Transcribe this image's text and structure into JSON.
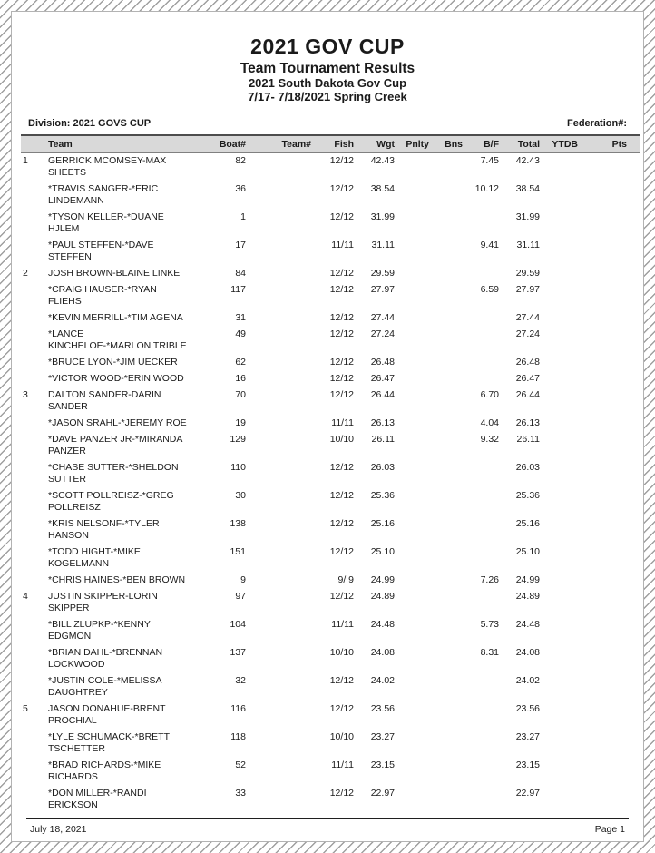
{
  "page": {
    "title": "2021 GOV CUP",
    "subtitle": "Team Tournament Results",
    "event": "2021 South Dakota Gov Cup",
    "dates_location": "7/17- 7/18/2021 Spring Creek",
    "division": "Division: 2021 GOVS CUP",
    "federation": "Federation#:",
    "footer_date": "July 18, 2021",
    "footer_page": "Page 1"
  },
  "table": {
    "columns": [
      "rank",
      "team",
      "boat",
      "teamno",
      "fish",
      "wgt",
      "pnlty",
      "bns",
      "bf",
      "total",
      "ytdb",
      "pts"
    ],
    "headers": {
      "team": "Team",
      "boat": "Boat#",
      "teamno": "Team#",
      "fish": "Fish",
      "wgt": "Wgt",
      "pnlty": "Pnlty",
      "bns": "Bns",
      "bf": "B/F",
      "total": "Total",
      "ytdb": "YTDB",
      "pts": "Pts"
    },
    "rows": [
      {
        "rank": "1",
        "team": "GERRICK MCOMSEY-MAX\nSHEETS",
        "boat": "82",
        "teamno": "",
        "fish": "12/12",
        "wgt": "42.43",
        "pnlty": "",
        "bns": "",
        "bf": "7.45",
        "total": "42.43",
        "ytdb": "",
        "pts": ""
      },
      {
        "rank": "",
        "team": "*TRAVIS SANGER-*ERIC\nLINDEMANN",
        "boat": "36",
        "teamno": "",
        "fish": "12/12",
        "wgt": "38.54",
        "pnlty": "",
        "bns": "",
        "bf": "10.12",
        "total": "38.54",
        "ytdb": "",
        "pts": ""
      },
      {
        "rank": "",
        "team": "*TYSON KELLER-*DUANE\nHJLEM",
        "boat": "1",
        "teamno": "",
        "fish": "12/12",
        "wgt": "31.99",
        "pnlty": "",
        "bns": "",
        "bf": "",
        "total": "31.99",
        "ytdb": "",
        "pts": ""
      },
      {
        "rank": "",
        "team": "*PAUL STEFFEN-*DAVE\nSTEFFEN",
        "boat": "17",
        "teamno": "",
        "fish": "11/11",
        "wgt": "31.11",
        "pnlty": "",
        "bns": "",
        "bf": "9.41",
        "total": "31.11",
        "ytdb": "",
        "pts": ""
      },
      {
        "rank": "2",
        "team": "JOSH BROWN-BLAINE LINKE",
        "boat": "84",
        "teamno": "",
        "fish": "12/12",
        "wgt": "29.59",
        "pnlty": "",
        "bns": "",
        "bf": "",
        "total": "29.59",
        "ytdb": "",
        "pts": ""
      },
      {
        "rank": "",
        "team": "*CRAIG HAUSER-*RYAN\nFLIEHS",
        "boat": "117",
        "teamno": "",
        "fish": "12/12",
        "wgt": "27.97",
        "pnlty": "",
        "bns": "",
        "bf": "6.59",
        "total": "27.97",
        "ytdb": "",
        "pts": ""
      },
      {
        "rank": "",
        "team": "*KEVIN MERRILL-*TIM AGENA",
        "boat": "31",
        "teamno": "",
        "fish": "12/12",
        "wgt": "27.44",
        "pnlty": "",
        "bns": "",
        "bf": "",
        "total": "27.44",
        "ytdb": "",
        "pts": ""
      },
      {
        "rank": "",
        "team": "*LANCE\nKINCHELOE-*MARLON TRIBLE",
        "boat": "49",
        "teamno": "",
        "fish": "12/12",
        "wgt": "27.24",
        "pnlty": "",
        "bns": "",
        "bf": "",
        "total": "27.24",
        "ytdb": "",
        "pts": ""
      },
      {
        "rank": "",
        "team": "*BRUCE LYON-*JIM UECKER",
        "boat": "62",
        "teamno": "",
        "fish": "12/12",
        "wgt": "26.48",
        "pnlty": "",
        "bns": "",
        "bf": "",
        "total": "26.48",
        "ytdb": "",
        "pts": ""
      },
      {
        "rank": "",
        "team": "*VICTOR WOOD-*ERIN WOOD",
        "boat": "16",
        "teamno": "",
        "fish": "12/12",
        "wgt": "26.47",
        "pnlty": "",
        "bns": "",
        "bf": "",
        "total": "26.47",
        "ytdb": "",
        "pts": ""
      },
      {
        "rank": "3",
        "team": "DALTON SANDER-DARIN\nSANDER",
        "boat": "70",
        "teamno": "",
        "fish": "12/12",
        "wgt": "26.44",
        "pnlty": "",
        "bns": "",
        "bf": "6.70",
        "total": "26.44",
        "ytdb": "",
        "pts": ""
      },
      {
        "rank": "",
        "team": "*JASON SRAHL-*JEREMY ROE",
        "boat": "19",
        "teamno": "",
        "fish": "11/11",
        "wgt": "26.13",
        "pnlty": "",
        "bns": "",
        "bf": "4.04",
        "total": "26.13",
        "ytdb": "",
        "pts": ""
      },
      {
        "rank": "",
        "team": "*DAVE PANZER JR-*MIRANDA\nPANZER",
        "boat": "129",
        "teamno": "",
        "fish": "10/10",
        "wgt": "26.11",
        "pnlty": "",
        "bns": "",
        "bf": "9.32",
        "total": "26.11",
        "ytdb": "",
        "pts": ""
      },
      {
        "rank": "",
        "team": "*CHASE SUTTER-*SHELDON\nSUTTER",
        "boat": "110",
        "teamno": "",
        "fish": "12/12",
        "wgt": "26.03",
        "pnlty": "",
        "bns": "",
        "bf": "",
        "total": "26.03",
        "ytdb": "",
        "pts": ""
      },
      {
        "rank": "",
        "team": "*SCOTT POLLREISZ-*GREG\nPOLLREISZ",
        "boat": "30",
        "teamno": "",
        "fish": "12/12",
        "wgt": "25.36",
        "pnlty": "",
        "bns": "",
        "bf": "",
        "total": "25.36",
        "ytdb": "",
        "pts": ""
      },
      {
        "rank": "",
        "team": "*KRIS NELSONF-*TYLER\nHANSON",
        "boat": "138",
        "teamno": "",
        "fish": "12/12",
        "wgt": "25.16",
        "pnlty": "",
        "bns": "",
        "bf": "",
        "total": "25.16",
        "ytdb": "",
        "pts": ""
      },
      {
        "rank": "",
        "team": "*TODD HIGHT-*MIKE\nKOGELMANN",
        "boat": "151",
        "teamno": "",
        "fish": "12/12",
        "wgt": "25.10",
        "pnlty": "",
        "bns": "",
        "bf": "",
        "total": "25.10",
        "ytdb": "",
        "pts": ""
      },
      {
        "rank": "",
        "team": "*CHRIS HAINES-*BEN BROWN",
        "boat": "9",
        "teamno": "",
        "fish": "9/ 9",
        "wgt": "24.99",
        "pnlty": "",
        "bns": "",
        "bf": "7.26",
        "total": "24.99",
        "ytdb": "",
        "pts": ""
      },
      {
        "rank": "4",
        "team": "JUSTIN SKIPPER-LORIN\nSKIPPER",
        "boat": "97",
        "teamno": "",
        "fish": "12/12",
        "wgt": "24.89",
        "pnlty": "",
        "bns": "",
        "bf": "",
        "total": "24.89",
        "ytdb": "",
        "pts": ""
      },
      {
        "rank": "",
        "team": "*BILL ZLUPKP-*KENNY\nEDGMON",
        "boat": "104",
        "teamno": "",
        "fish": "11/11",
        "wgt": "24.48",
        "pnlty": "",
        "bns": "",
        "bf": "5.73",
        "total": "24.48",
        "ytdb": "",
        "pts": ""
      },
      {
        "rank": "",
        "team": "*BRIAN DAHL-*BRENNAN\nLOCKWOOD",
        "boat": "137",
        "teamno": "",
        "fish": "10/10",
        "wgt": "24.08",
        "pnlty": "",
        "bns": "",
        "bf": "8.31",
        "total": "24.08",
        "ytdb": "",
        "pts": ""
      },
      {
        "rank": "",
        "team": "*JUSTIN COLE-*MELISSA\nDAUGHTREY",
        "boat": "32",
        "teamno": "",
        "fish": "12/12",
        "wgt": "24.02",
        "pnlty": "",
        "bns": "",
        "bf": "",
        "total": "24.02",
        "ytdb": "",
        "pts": ""
      },
      {
        "rank": "5",
        "team": "JASON DONAHUE-BRENT\nPROCHIAL",
        "boat": "116",
        "teamno": "",
        "fish": "12/12",
        "wgt": "23.56",
        "pnlty": "",
        "bns": "",
        "bf": "",
        "total": "23.56",
        "ytdb": "",
        "pts": ""
      },
      {
        "rank": "",
        "team": "*LYLE SCHUMACK-*BRETT\nTSCHETTER",
        "boat": "118",
        "teamno": "",
        "fish": "10/10",
        "wgt": "23.27",
        "pnlty": "",
        "bns": "",
        "bf": "",
        "total": "23.27",
        "ytdb": "",
        "pts": ""
      },
      {
        "rank": "",
        "team": "*BRAD RICHARDS-*MIKE\nRICHARDS",
        "boat": "52",
        "teamno": "",
        "fish": "11/11",
        "wgt": "23.15",
        "pnlty": "",
        "bns": "",
        "bf": "",
        "total": "23.15",
        "ytdb": "",
        "pts": ""
      },
      {
        "rank": "",
        "team": "*DON MILLER-*RANDI\nERICKSON",
        "boat": "33",
        "teamno": "",
        "fish": "12/12",
        "wgt": "22.97",
        "pnlty": "",
        "bns": "",
        "bf": "",
        "total": "22.97",
        "ytdb": "",
        "pts": ""
      }
    ]
  }
}
